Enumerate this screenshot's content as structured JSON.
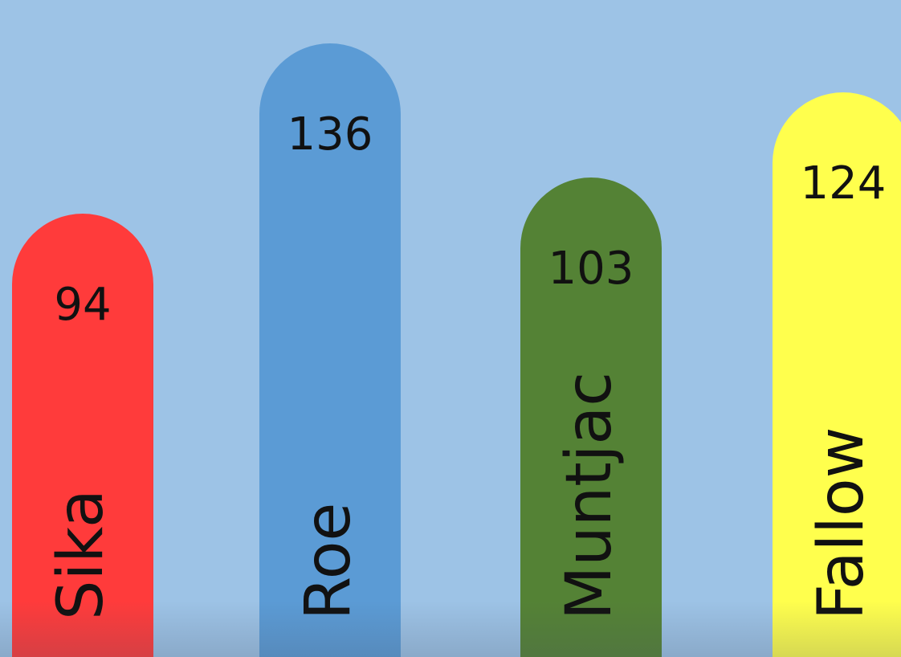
{
  "background": "#9dc3e6",
  "chart_data": {
    "type": "bar",
    "title": "",
    "xlabel": "",
    "ylabel": "",
    "categories": [
      "Sika",
      "Roe",
      "Muntjac",
      "Fallow"
    ],
    "values": [
      94,
      136,
      103,
      124
    ],
    "colors": [
      "#ff3b3b",
      "#5b9bd5",
      "#548235",
      "#ffff4d"
    ],
    "data_labels": [
      "94",
      "136",
      "103",
      "124"
    ],
    "grid": false,
    "legend": "none"
  }
}
